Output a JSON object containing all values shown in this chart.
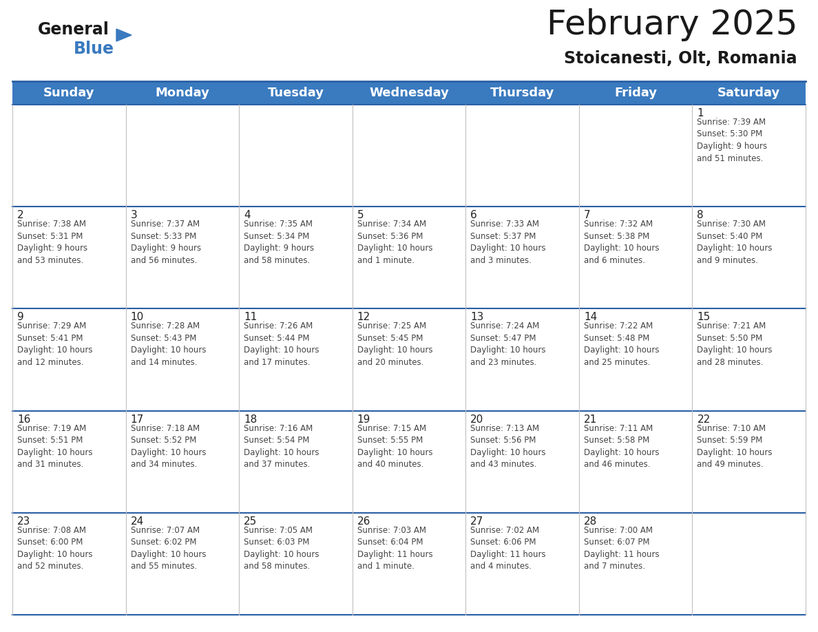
{
  "title": "February 2025",
  "subtitle": "Stoicanesti, Olt, Romania",
  "header_bg_color": "#3a7abf",
  "header_text_color": "#ffffff",
  "bg_color": "#ffffff",
  "grid_line_color": "#2a5fa5",
  "cell_border_color": "#cccccc",
  "day_headers": [
    "Sunday",
    "Monday",
    "Tuesday",
    "Wednesday",
    "Thursday",
    "Friday",
    "Saturday"
  ],
  "title_fontsize": 36,
  "subtitle_fontsize": 17,
  "header_fontsize": 13,
  "cell_day_fontsize": 11,
  "cell_text_fontsize": 8.5,
  "logo_general_fontsize": 17,
  "logo_blue_fontsize": 17,
  "calendar_data": [
    [
      {
        "day": "",
        "sunrise": "",
        "sunset": "",
        "daylight": ""
      },
      {
        "day": "",
        "sunrise": "",
        "sunset": "",
        "daylight": ""
      },
      {
        "day": "",
        "sunrise": "",
        "sunset": "",
        "daylight": ""
      },
      {
        "day": "",
        "sunrise": "",
        "sunset": "",
        "daylight": ""
      },
      {
        "day": "",
        "sunrise": "",
        "sunset": "",
        "daylight": ""
      },
      {
        "day": "",
        "sunrise": "",
        "sunset": "",
        "daylight": ""
      },
      {
        "day": "1",
        "sunrise": "7:39 AM",
        "sunset": "5:30 PM",
        "daylight": "9 hours\nand 51 minutes."
      }
    ],
    [
      {
        "day": "2",
        "sunrise": "7:38 AM",
        "sunset": "5:31 PM",
        "daylight": "9 hours\nand 53 minutes."
      },
      {
        "day": "3",
        "sunrise": "7:37 AM",
        "sunset": "5:33 PM",
        "daylight": "9 hours\nand 56 minutes."
      },
      {
        "day": "4",
        "sunrise": "7:35 AM",
        "sunset": "5:34 PM",
        "daylight": "9 hours\nand 58 minutes."
      },
      {
        "day": "5",
        "sunrise": "7:34 AM",
        "sunset": "5:36 PM",
        "daylight": "10 hours\nand 1 minute."
      },
      {
        "day": "6",
        "sunrise": "7:33 AM",
        "sunset": "5:37 PM",
        "daylight": "10 hours\nand 3 minutes."
      },
      {
        "day": "7",
        "sunrise": "7:32 AM",
        "sunset": "5:38 PM",
        "daylight": "10 hours\nand 6 minutes."
      },
      {
        "day": "8",
        "sunrise": "7:30 AM",
        "sunset": "5:40 PM",
        "daylight": "10 hours\nand 9 minutes."
      }
    ],
    [
      {
        "day": "9",
        "sunrise": "7:29 AM",
        "sunset": "5:41 PM",
        "daylight": "10 hours\nand 12 minutes."
      },
      {
        "day": "10",
        "sunrise": "7:28 AM",
        "sunset": "5:43 PM",
        "daylight": "10 hours\nand 14 minutes."
      },
      {
        "day": "11",
        "sunrise": "7:26 AM",
        "sunset": "5:44 PM",
        "daylight": "10 hours\nand 17 minutes."
      },
      {
        "day": "12",
        "sunrise": "7:25 AM",
        "sunset": "5:45 PM",
        "daylight": "10 hours\nand 20 minutes."
      },
      {
        "day": "13",
        "sunrise": "7:24 AM",
        "sunset": "5:47 PM",
        "daylight": "10 hours\nand 23 minutes."
      },
      {
        "day": "14",
        "sunrise": "7:22 AM",
        "sunset": "5:48 PM",
        "daylight": "10 hours\nand 25 minutes."
      },
      {
        "day": "15",
        "sunrise": "7:21 AM",
        "sunset": "5:50 PM",
        "daylight": "10 hours\nand 28 minutes."
      }
    ],
    [
      {
        "day": "16",
        "sunrise": "7:19 AM",
        "sunset": "5:51 PM",
        "daylight": "10 hours\nand 31 minutes."
      },
      {
        "day": "17",
        "sunrise": "7:18 AM",
        "sunset": "5:52 PM",
        "daylight": "10 hours\nand 34 minutes."
      },
      {
        "day": "18",
        "sunrise": "7:16 AM",
        "sunset": "5:54 PM",
        "daylight": "10 hours\nand 37 minutes."
      },
      {
        "day": "19",
        "sunrise": "7:15 AM",
        "sunset": "5:55 PM",
        "daylight": "10 hours\nand 40 minutes."
      },
      {
        "day": "20",
        "sunrise": "7:13 AM",
        "sunset": "5:56 PM",
        "daylight": "10 hours\nand 43 minutes."
      },
      {
        "day": "21",
        "sunrise": "7:11 AM",
        "sunset": "5:58 PM",
        "daylight": "10 hours\nand 46 minutes."
      },
      {
        "day": "22",
        "sunrise": "7:10 AM",
        "sunset": "5:59 PM",
        "daylight": "10 hours\nand 49 minutes."
      }
    ],
    [
      {
        "day": "23",
        "sunrise": "7:08 AM",
        "sunset": "6:00 PM",
        "daylight": "10 hours\nand 52 minutes."
      },
      {
        "day": "24",
        "sunrise": "7:07 AM",
        "sunset": "6:02 PM",
        "daylight": "10 hours\nand 55 minutes."
      },
      {
        "day": "25",
        "sunrise": "7:05 AM",
        "sunset": "6:03 PM",
        "daylight": "10 hours\nand 58 minutes."
      },
      {
        "day": "26",
        "sunrise": "7:03 AM",
        "sunset": "6:04 PM",
        "daylight": "11 hours\nand 1 minute."
      },
      {
        "day": "27",
        "sunrise": "7:02 AM",
        "sunset": "6:06 PM",
        "daylight": "11 hours\nand 4 minutes."
      },
      {
        "day": "28",
        "sunrise": "7:00 AM",
        "sunset": "6:07 PM",
        "daylight": "11 hours\nand 7 minutes."
      },
      {
        "day": "",
        "sunrise": "",
        "sunset": "",
        "daylight": ""
      }
    ]
  ]
}
